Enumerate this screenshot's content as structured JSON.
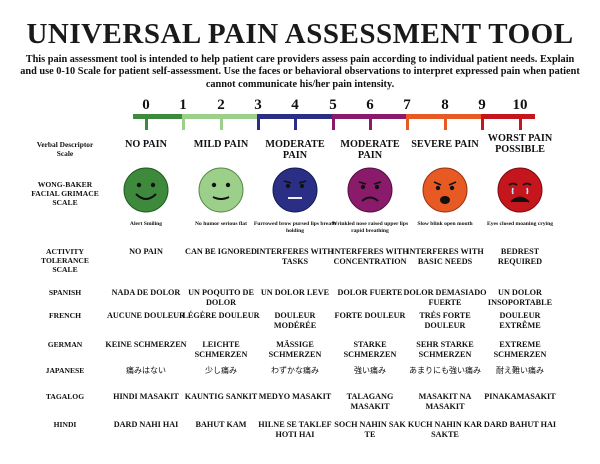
{
  "title": "UNIVERSAL PAIN ASSESSMENT TOOL",
  "intro": "This pain assessment tool is intended to help patient care providers assess pain according to individual patient needs. Explain and use 0-10 Scale for patient self-assessment. Use the faces or behavioral observations to interpret expressed pain when patient cannot communicate his/her pain intensity.",
  "scale": [
    "0",
    "1",
    "2",
    "3",
    "4",
    "5",
    "6",
    "7",
    "8",
    "9",
    "10"
  ],
  "colors": {
    "green": "#3d8a3d",
    "light_green": "#9ccf8a",
    "navy": "#2a2f85",
    "purple": "#8a1a6a",
    "orange": "#e85a24",
    "red": "#c4161c"
  },
  "row_labels": {
    "verbal": "Verbal Descriptor Scale",
    "faces": "WONG-BAKER FACIAL GRIMACE SCALE",
    "activity": "ACTIVITY TOLERANCE SCALE",
    "spanish": "SPANISH",
    "french": "FRENCH",
    "german": "GERMAN",
    "japanese": "JAPANESE",
    "tagalog": "TAGALOG",
    "hindi": "HINDI"
  },
  "columns": [
    {
      "verbal": "NO PAIN",
      "face_icon": "smiling-face-icon",
      "face_note": "Alert Smiling",
      "activity": "NO PAIN",
      "spanish": "NADA DE DOLOR",
      "french": "AUCUNE DOULEUR",
      "german": "KEINE SCHMERZEN",
      "japanese": "痛みはない",
      "tagalog": "HINDI MASAKIT",
      "hindi": "DARD NAHI HAI"
    },
    {
      "verbal": "MILD PAIN",
      "face_icon": "no-humor-face-icon",
      "face_note": "No humor serious flat",
      "activity": "CAN BE IGNORED",
      "spanish": "UN POQUITO DE DOLOR",
      "french": "LÉGÈRE DOULEUR",
      "german": "LEICHTE SCHMERZEN",
      "japanese": "少し痛み",
      "tagalog": "KAUNTIG SANKIT",
      "hindi": "BAHUT KAM"
    },
    {
      "verbal": "MODERATE PAIN",
      "face_icon": "furrowed-brow-face-icon",
      "face_note": "Furrowed brow pursed lips breath holding",
      "activity": "INTERFERES WITH TASKS",
      "spanish": "UN DOLOR LEVE",
      "french": "DOULEUR MODÉRÉE",
      "german": "MÄSSIGE SCHMERZEN",
      "japanese": "わずかな痛み",
      "tagalog": "MEDYO MASAKIT",
      "hindi": "HILNE SE TAKLEF HOTI HAI"
    },
    {
      "verbal": "MODERATE PAIN",
      "face_icon": "wrinkled-nose-face-icon",
      "face_note": "Wrinkled nose raised upper lips rapid breathing",
      "activity": "INTERFERES WITH CONCENTRATION",
      "spanish": "DOLOR FUERTE",
      "french": "FORTE DOULEUR",
      "german": "STARKE SCHMERZEN",
      "japanese": "強い痛み",
      "tagalog": "TALAGANG MASAKIT",
      "hindi": "SOCH NAHIN SAK TE"
    },
    {
      "verbal": "SEVERE PAIN",
      "face_icon": "slow-blink-face-icon",
      "face_note": "Slow blink open mouth",
      "activity": "INTERFERES WITH BASIC NEEDS",
      "spanish": "DOLOR DEMASIADO FUERTE",
      "french": "TRÉS FORTE DOULEUR",
      "german": "SEHR STARKE SCHMERZEN",
      "japanese": "あまりにも強い痛み",
      "tagalog": "MASAKIT NA MASAKIT",
      "hindi": "KUCH NAHIN KAR SAKTE"
    },
    {
      "verbal": "WORST PAIN POSSIBLE",
      "face_icon": "crying-face-icon",
      "face_note": "Eyes closed moaning crying",
      "activity": "BEDREST REQUIRED",
      "spanish": "UN DOLOR INSOPORTABLE",
      "french": "DOULEUR EXTRÊME",
      "german": "EXTREME SCHMERZEN",
      "japanese": "耐え難い痛み",
      "tagalog": "PINAKAMASAKIT",
      "hindi": "DARD BAHUT HAI"
    }
  ]
}
